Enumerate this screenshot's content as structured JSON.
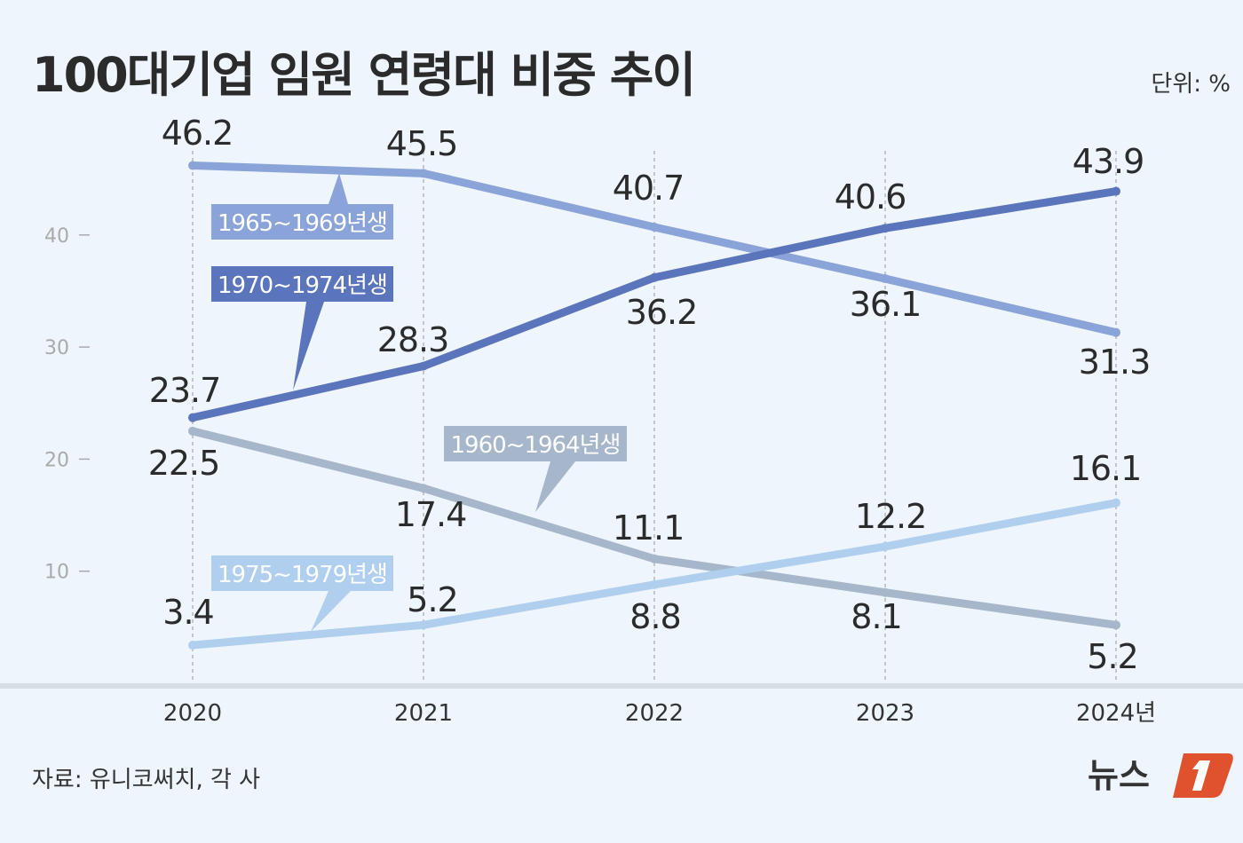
{
  "title": "100대기업 임원 연령대 비중 추이",
  "unit": "단위: %",
  "source": "자료: 유니코써치, 각 사",
  "logo_text": "뉴스1",
  "chart_data": {
    "type": "line",
    "title": "100대기업 임원 연령대 비중 추이",
    "categories": [
      "2020",
      "2021",
      "2022",
      "2023",
      "2024년"
    ],
    "ylim": [
      0,
      50
    ],
    "yticks": [
      10,
      20,
      30,
      40
    ],
    "grid": "vertical dashed lines at each year",
    "legend": "inline labels",
    "series": [
      {
        "name": "1965~1969년생",
        "color": "#8aa3d8",
        "values": [
          46.2,
          45.5,
          40.7,
          36.1,
          31.3
        ]
      },
      {
        "name": "1970~1974년생",
        "color": "#5b75bd",
        "values": [
          23.7,
          28.3,
          36.2,
          40.6,
          43.9
        ]
      },
      {
        "name": "1960~1964년생",
        "color": "#a6b6cb",
        "values": [
          22.5,
          17.4,
          11.1,
          8.1,
          5.2
        ]
      },
      {
        "name": "1975~1979년생",
        "color": "#b0cfee",
        "values": [
          3.4,
          5.2,
          8.8,
          12.2,
          16.1
        ]
      }
    ]
  }
}
